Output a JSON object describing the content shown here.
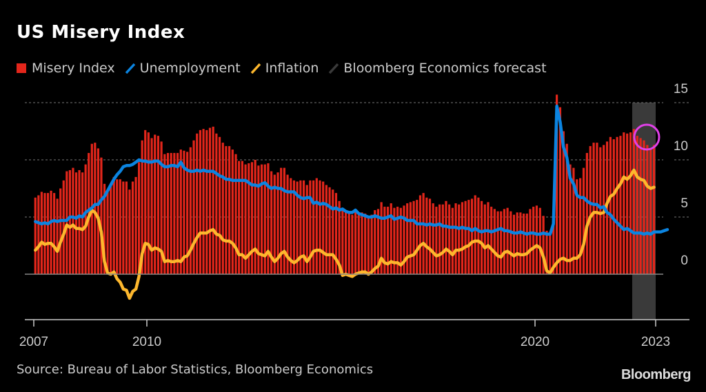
{
  "title": "US Misery Index",
  "source": "Source: Bureau of Labor Statistics, Bloomberg Economics",
  "brand": "Bloomberg",
  "legend": [
    {
      "label": "Misery Index",
      "color": "#e3261b",
      "kind": "box"
    },
    {
      "label": "Unemployment",
      "color": "#0b84e0",
      "kind": "line"
    },
    {
      "label": "Inflation",
      "color": "#fdb72d",
      "kind": "line"
    },
    {
      "label": "Bloomberg Economics forecast",
      "color": "#3a3a3a",
      "kind": "line"
    }
  ],
  "chart_data": {
    "type": "bar+line",
    "title": "US Misery Index",
    "xlabel": "",
    "ylabel": "",
    "x_ticks": [
      "2007",
      "2010",
      "2020",
      "2023"
    ],
    "y_ticks": [
      0,
      5,
      10,
      15
    ],
    "ylim": [
      -4,
      15
    ],
    "xlim": [
      2007,
      2023.4
    ],
    "grid": true,
    "legend_position": "top-left",
    "start": "2007-01",
    "frequency": "monthly",
    "forecast_period": {
      "start": "2022-06",
      "end": "2022-12",
      "label": "Bloomberg Economics forecast"
    },
    "highlight": {
      "shape": "circle",
      "color": "#e040e8",
      "around": "2022-09 to 2022-12",
      "value_approx": 11.5
    },
    "series": [
      {
        "name": "Unemployment",
        "type": "line",
        "values": [
          4.6,
          4.5,
          4.4,
          4.5,
          4.4,
          4.6,
          4.7,
          4.6,
          4.7,
          4.7,
          4.7,
          5.0,
          5.0,
          4.9,
          5.1,
          5.0,
          5.4,
          5.6,
          5.8,
          6.1,
          6.1,
          6.5,
          6.8,
          7.3,
          7.8,
          8.3,
          8.7,
          9.0,
          9.4,
          9.5,
          9.5,
          9.6,
          9.8,
          10.0,
          9.9,
          9.9,
          9.8,
          9.8,
          9.9,
          9.9,
          9.6,
          9.4,
          9.4,
          9.5,
          9.5,
          9.4,
          9.8,
          9.3,
          9.1,
          9.0,
          9.0,
          9.1,
          9.0,
          9.1,
          9.0,
          9.0,
          9.0,
          8.8,
          8.6,
          8.5,
          8.3,
          8.3,
          8.2,
          8.2,
          8.2,
          8.2,
          8.2,
          8.0,
          7.8,
          7.8,
          7.7,
          7.9,
          8.0,
          7.7,
          7.5,
          7.6,
          7.5,
          7.5,
          7.3,
          7.2,
          7.2,
          7.2,
          6.9,
          6.7,
          6.6,
          6.7,
          6.7,
          6.2,
          6.3,
          6.1,
          6.2,
          6.1,
          5.9,
          5.7,
          5.8,
          5.6,
          5.7,
          5.5,
          5.4,
          5.4,
          5.6,
          5.3,
          5.2,
          5.1,
          5.0,
          5.0,
          5.1,
          5.0,
          4.9,
          4.9,
          5.0,
          5.1,
          4.8,
          4.9,
          5.0,
          4.9,
          4.7,
          4.7,
          4.7,
          4.4,
          4.4,
          4.4,
          4.3,
          4.4,
          4.3,
          4.3,
          4.4,
          4.2,
          4.2,
          4.1,
          4.1,
          4.1,
          4.0,
          4.1,
          4.0,
          4.0,
          3.8,
          4.0,
          3.8,
          3.7,
          3.8,
          3.8,
          3.7,
          3.8,
          3.9,
          4.0,
          3.8,
          3.8,
          3.7,
          3.6,
          3.6,
          3.7,
          3.6,
          3.5,
          3.6,
          3.6,
          3.5,
          3.5,
          3.6,
          3.5,
          3.5,
          4.4,
          14.7,
          13.3,
          11.1,
          10.2,
          8.4,
          7.9,
          6.9,
          6.7,
          6.7,
          6.4,
          6.2,
          6.1,
          6.1,
          5.8,
          5.9,
          5.4,
          5.2,
          4.8,
          4.5,
          4.2,
          3.9,
          4.0,
          3.8,
          3.6,
          3.6,
          3.6,
          3.5,
          3.6,
          3.5,
          3.7,
          3.7,
          3.7,
          3.8,
          3.9
        ]
      },
      {
        "name": "Inflation",
        "type": "line",
        "values": [
          2.1,
          2.4,
          2.8,
          2.6,
          2.7,
          2.7,
          2.4,
          2.0,
          2.8,
          3.5,
          4.3,
          4.1,
          4.3,
          4.0,
          4.0,
          3.9,
          4.2,
          5.0,
          5.6,
          5.4,
          4.9,
          3.7,
          1.1,
          0.1,
          0.0,
          0.2,
          -0.4,
          -0.7,
          -1.3,
          -1.4,
          -2.1,
          -1.5,
          -1.3,
          -0.2,
          1.8,
          2.7,
          2.6,
          2.1,
          2.3,
          2.2,
          2.0,
          1.1,
          1.2,
          1.1,
          1.1,
          1.2,
          1.1,
          1.5,
          1.6,
          2.1,
          2.7,
          3.2,
          3.6,
          3.6,
          3.6,
          3.8,
          3.9,
          3.5,
          3.4,
          3.0,
          2.9,
          2.9,
          2.7,
          2.3,
          1.7,
          1.7,
          1.4,
          1.7,
          2.0,
          2.2,
          1.8,
          1.7,
          1.6,
          2.0,
          1.5,
          1.1,
          1.4,
          1.8,
          2.0,
          1.5,
          1.2,
          1.0,
          1.2,
          1.5,
          1.6,
          1.1,
          1.5,
          2.0,
          2.1,
          2.1,
          1.9,
          1.7,
          1.7,
          1.7,
          1.3,
          0.8,
          -0.1,
          0.0,
          -0.1,
          -0.2,
          0.0,
          0.1,
          0.2,
          0.2,
          0.0,
          0.2,
          0.5,
          0.7,
          1.4,
          1.0,
          0.9,
          1.1,
          1.0,
          1.0,
          0.8,
          1.1,
          1.5,
          1.6,
          1.7,
          2.1,
          2.5,
          2.7,
          2.4,
          2.2,
          1.9,
          1.6,
          1.7,
          1.9,
          2.2,
          2.0,
          1.7,
          2.1,
          2.1,
          2.2,
          2.4,
          2.5,
          2.8,
          2.9,
          2.9,
          2.7,
          2.3,
          2.5,
          2.2,
          1.9,
          1.6,
          1.5,
          1.9,
          2.0,
          1.8,
          1.6,
          1.8,
          1.7,
          1.7,
          1.8,
          2.1,
          2.3,
          2.5,
          2.3,
          1.5,
          0.3,
          0.1,
          0.6,
          1.0,
          1.3,
          1.4,
          1.2,
          1.2,
          1.4,
          1.4,
          1.7,
          2.6,
          4.2,
          5.0,
          5.4,
          5.4,
          5.3,
          5.4,
          6.2,
          6.8,
          7.0,
          7.5,
          7.9,
          8.5,
          8.3,
          8.6,
          9.1,
          8.5,
          8.3,
          8.2,
          7.7,
          7.5,
          7.6
        ]
      },
      {
        "name": "Misery Index",
        "type": "bar",
        "note": "sum of unemployment and inflation"
      }
    ]
  }
}
